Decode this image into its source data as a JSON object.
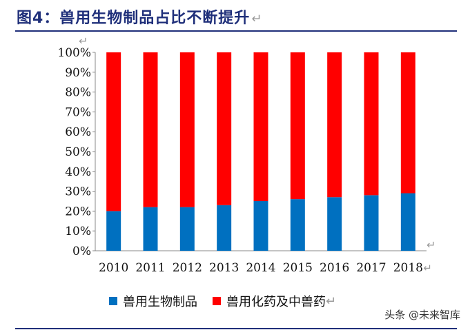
{
  "title": "图4：兽用生物制品占比不断提升",
  "return_mark": "↵",
  "watermark": "头条 @未来智库",
  "colors": {
    "bio": "#0070c0",
    "chem": "#ff0000",
    "title": "#1f2f7a",
    "axis": "#888888"
  },
  "chart_data": {
    "type": "bar",
    "stacked": true,
    "percent": true,
    "categories": [
      "2010",
      "2011",
      "2012",
      "2013",
      "2014",
      "2015",
      "2016",
      "2017",
      "2018"
    ],
    "series": [
      {
        "name": "兽用生物制品",
        "values": [
          20,
          22,
          22,
          23,
          25,
          26,
          27,
          28,
          29
        ]
      },
      {
        "name": "兽用化药及中兽药",
        "values": [
          80,
          78,
          78,
          77,
          75,
          74,
          73,
          72,
          71
        ]
      }
    ],
    "ylim": [
      0,
      100
    ],
    "yticks": [
      "0%",
      "10%",
      "20%",
      "30%",
      "40%",
      "50%",
      "60%",
      "70%",
      "80%",
      "90%",
      "100%"
    ],
    "grid": false,
    "legend": "bottom"
  }
}
